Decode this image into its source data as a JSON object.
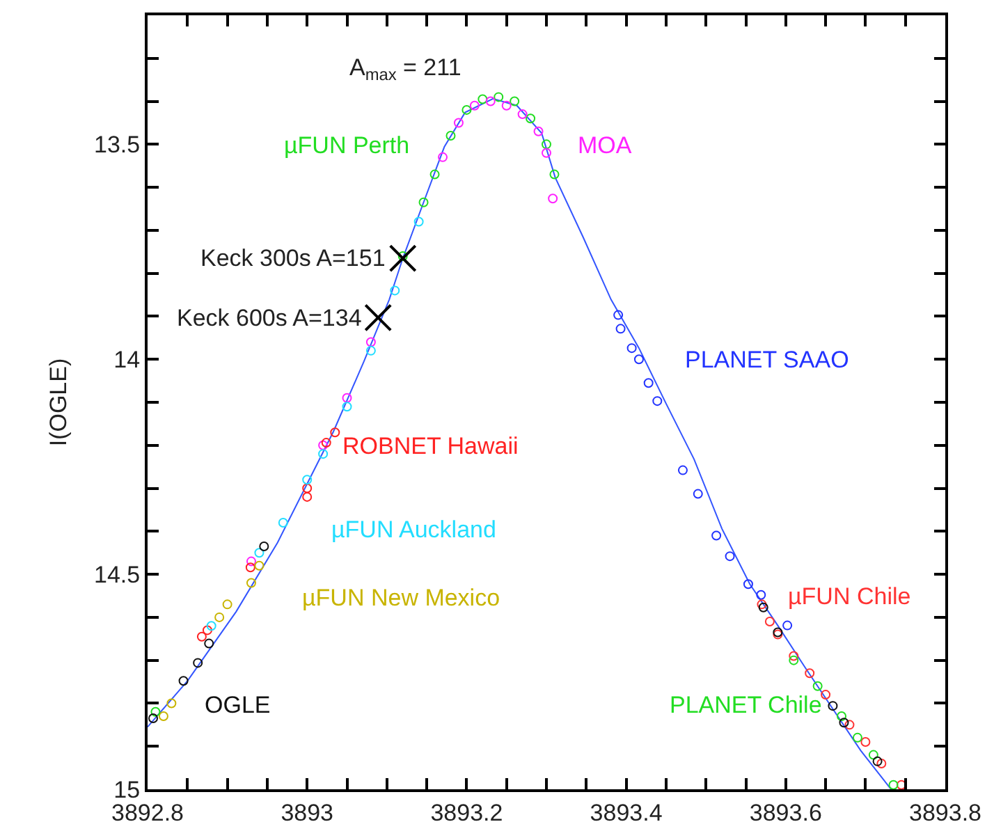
{
  "chart_data": {
    "type": "scatter",
    "ylabel": "I(OGLE)",
    "xlim": [
      3892.8,
      3893.8
    ],
    "ylim": [
      15,
      13.2
    ],
    "xticks": [
      3892.8,
      {
        "value": 3892.85,
        "label": null
      },
      {
        "value": 3892.9,
        "label": null
      },
      {
        "value": 3892.95,
        "label": null
      },
      3893,
      {
        "value": 3893.05,
        "label": null
      },
      {
        "value": 3893.1,
        "label": null
      },
      {
        "value": 3893.15,
        "label": null
      },
      3893.2,
      {
        "value": 3893.25,
        "label": null
      },
      {
        "value": 3893.3,
        "label": null
      },
      {
        "value": 3893.35,
        "label": null
      },
      3893.4,
      {
        "value": 3893.45,
        "label": null
      },
      {
        "value": 3893.5,
        "label": null
      },
      {
        "value": 3893.55,
        "label": null
      },
      3893.6,
      {
        "value": 3893.65,
        "label": null
      },
      {
        "value": 3893.7,
        "label": null
      },
      {
        "value": 3893.75,
        "label": null
      },
      3893.8
    ],
    "yticks": [
      {
        "value": 13.3,
        "label": null
      },
      {
        "value": 13.4,
        "label": null
      },
      13.5,
      {
        "value": 13.6,
        "label": null
      },
      {
        "value": 13.7,
        "label": null
      },
      {
        "value": 13.8,
        "label": null
      },
      {
        "value": 13.9,
        "label": null
      },
      14,
      {
        "value": 14.1,
        "label": null
      },
      {
        "value": 14.2,
        "label": null
      },
      {
        "value": 14.3,
        "label": null
      },
      {
        "value": 14.4,
        "label": null
      },
      14.5,
      {
        "value": 14.6,
        "label": null
      },
      {
        "value": 14.7,
        "label": null
      },
      {
        "value": 14.8,
        "label": null
      },
      {
        "value": 14.9,
        "label": null
      },
      15
    ],
    "legend": false,
    "marker": "circle",
    "series": [
      {
        "type": "line",
        "color": "#3355ff",
        "marker": "none",
        "x": [
          3892.8,
          3892.85,
          3892.911,
          3892.963,
          3892.998,
          3893.033,
          3893.071,
          3893.103,
          3893.12,
          3893.146,
          3893.172,
          3893.198,
          3893.233,
          3893.263,
          3893.294,
          3893.311,
          3893.346,
          3893.381,
          3893.416,
          3893.45,
          3893.485,
          3893.52,
          3893.555,
          3893.59,
          3893.624,
          3893.659,
          3893.694,
          3893.732
        ],
        "values": [
          14.855,
          14.748,
          14.587,
          14.426,
          14.297,
          14.168,
          14.006,
          13.861,
          13.765,
          13.635,
          13.506,
          13.426,
          13.394,
          13.41,
          13.474,
          13.577,
          13.716,
          13.861,
          13.974,
          14.103,
          14.232,
          14.394,
          14.523,
          14.619,
          14.716,
          14.813,
          14.91,
          15.0
        ]
      },
      {
        "name": "µFUN Perth",
        "color": "#22dd22",
        "x": [
          3893.12,
          3893.146,
          3893.16,
          3893.18,
          3893.2,
          3893.22,
          3893.24,
          3893.26,
          3893.28,
          3893.3,
          3893.31
        ],
        "values": [
          13.76,
          13.635,
          13.57,
          13.48,
          13.42,
          13.395,
          13.39,
          13.4,
          13.44,
          13.5,
          13.57
        ]
      },
      {
        "name": "MOA",
        "color": "#ff22ff",
        "x": [
          3892.93,
          3893.02,
          3893.05,
          3893.08,
          3893.17,
          3893.19,
          3893.21,
          3893.23,
          3893.25,
          3893.27,
          3893.29,
          3893.3,
          3893.308
        ],
        "values": [
          14.47,
          14.2,
          14.09,
          13.96,
          13.53,
          13.45,
          13.41,
          13.4,
          13.41,
          13.43,
          13.47,
          13.52,
          13.626
        ]
      },
      {
        "name": "PLANET SAAO",
        "color": "#2233ff",
        "x": [
          3893.39,
          3893.393,
          3893.407,
          3893.416,
          3893.428,
          3893.439,
          3893.471,
          3893.49,
          3893.513,
          3893.53,
          3893.553,
          3893.569,
          3893.602
        ],
        "values": [
          13.897,
          13.929,
          13.974,
          14.0,
          14.055,
          14.097,
          14.258,
          14.313,
          14.41,
          14.458,
          14.523,
          14.548,
          14.619
        ]
      },
      {
        "name": "ROBNET Hawaii",
        "color": "#ff2222",
        "x": [
          3892.868,
          3892.875,
          3892.929,
          3893.0,
          3893.0,
          3893.024,
          3893.035
        ],
        "values": [
          14.645,
          14.63,
          14.484,
          14.3,
          14.32,
          14.194,
          14.17
        ]
      },
      {
        "name": "µFUN Auckland",
        "color": "#22ddff",
        "x": [
          3892.88,
          3892.94,
          3892.97,
          3893.0,
          3893.02,
          3893.05,
          3893.08,
          3893.11,
          3893.14
        ],
        "values": [
          14.62,
          14.45,
          14.38,
          14.28,
          14.22,
          14.11,
          13.98,
          13.84,
          13.68
        ]
      },
      {
        "name": "µFUN New Mexico",
        "color": "#c8b400",
        "x": [
          3892.82,
          3892.83,
          3892.89,
          3892.9,
          3892.93,
          3892.94
        ],
        "values": [
          14.83,
          14.8,
          14.6,
          14.57,
          14.52,
          14.48
        ]
      },
      {
        "name": "µFUN Chile",
        "color": "#ff3333",
        "x": [
          3893.57,
          3893.58,
          3893.59,
          3893.61,
          3893.63,
          3893.65,
          3893.68,
          3893.7,
          3893.72,
          3893.745
        ],
        "values": [
          14.57,
          14.61,
          14.64,
          14.69,
          14.73,
          14.78,
          14.85,
          14.89,
          14.94,
          14.99
        ]
      },
      {
        "name": "PLANET Chile",
        "color": "#22dd22",
        "x": [
          3892.81,
          3893.61,
          3893.64,
          3893.67,
          3893.69,
          3893.71,
          3893.735
        ],
        "values": [
          14.82,
          14.7,
          14.76,
          14.83,
          14.88,
          14.92,
          14.99
        ]
      },
      {
        "name": "OGLE",
        "color": "#111111",
        "x": [
          3892.807,
          3892.845,
          3892.863,
          3892.877,
          3892.946,
          3893.572,
          3893.59,
          3893.659,
          3893.673,
          3893.715
        ],
        "values": [
          14.835,
          14.748,
          14.706,
          14.661,
          14.435,
          14.577,
          14.635,
          14.806,
          14.845,
          14.935
        ]
      },
      {
        "color": "#000000",
        "marker": "cross",
        "x": [
          3893.12,
          3893.089
        ],
        "values": [
          13.765,
          13.903
        ]
      }
    ],
    "annotations": [
      "A$_{max}$ = 211",
      {
        "text": "Keck 300s A=151",
        "x": 3893.12,
        "y": 13.765
      },
      {
        "text": "Keck 600s A=134",
        "x": 3893.089,
        "y": 13.903
      }
    ]
  }
}
